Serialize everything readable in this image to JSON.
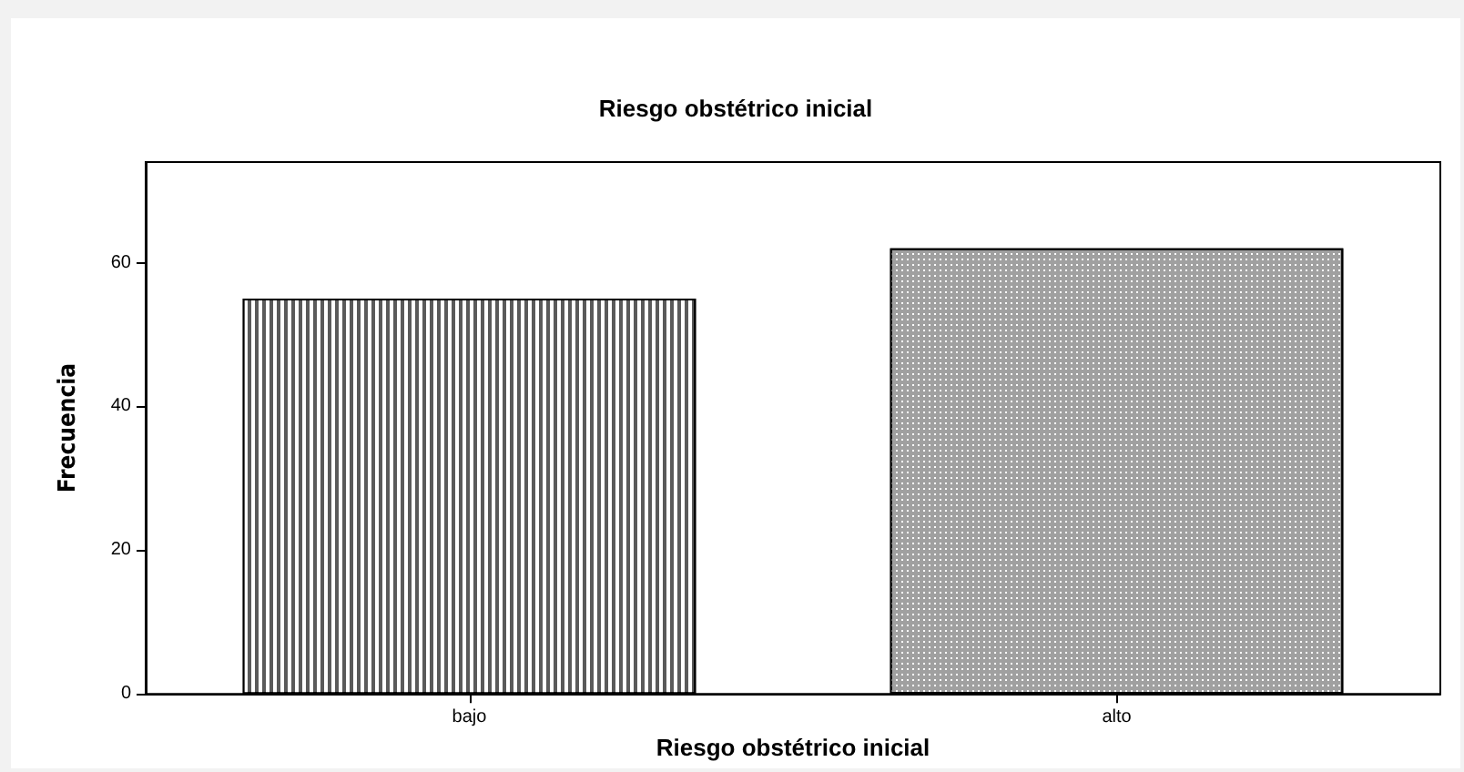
{
  "chart_data": {
    "type": "bar",
    "title": "Riesgo obstétrico inicial",
    "xlabel": "Riesgo obstétrico inicial",
    "ylabel": "Frecuencia",
    "categories": [
      "bajo",
      "alto"
    ],
    "values": [
      55,
      62
    ],
    "colors": [
      "#5a5a5a",
      "#a0a0a0"
    ],
    "ylim": [
      0,
      74
    ],
    "yticks": [
      0,
      20,
      40,
      60
    ],
    "grid": false
  }
}
